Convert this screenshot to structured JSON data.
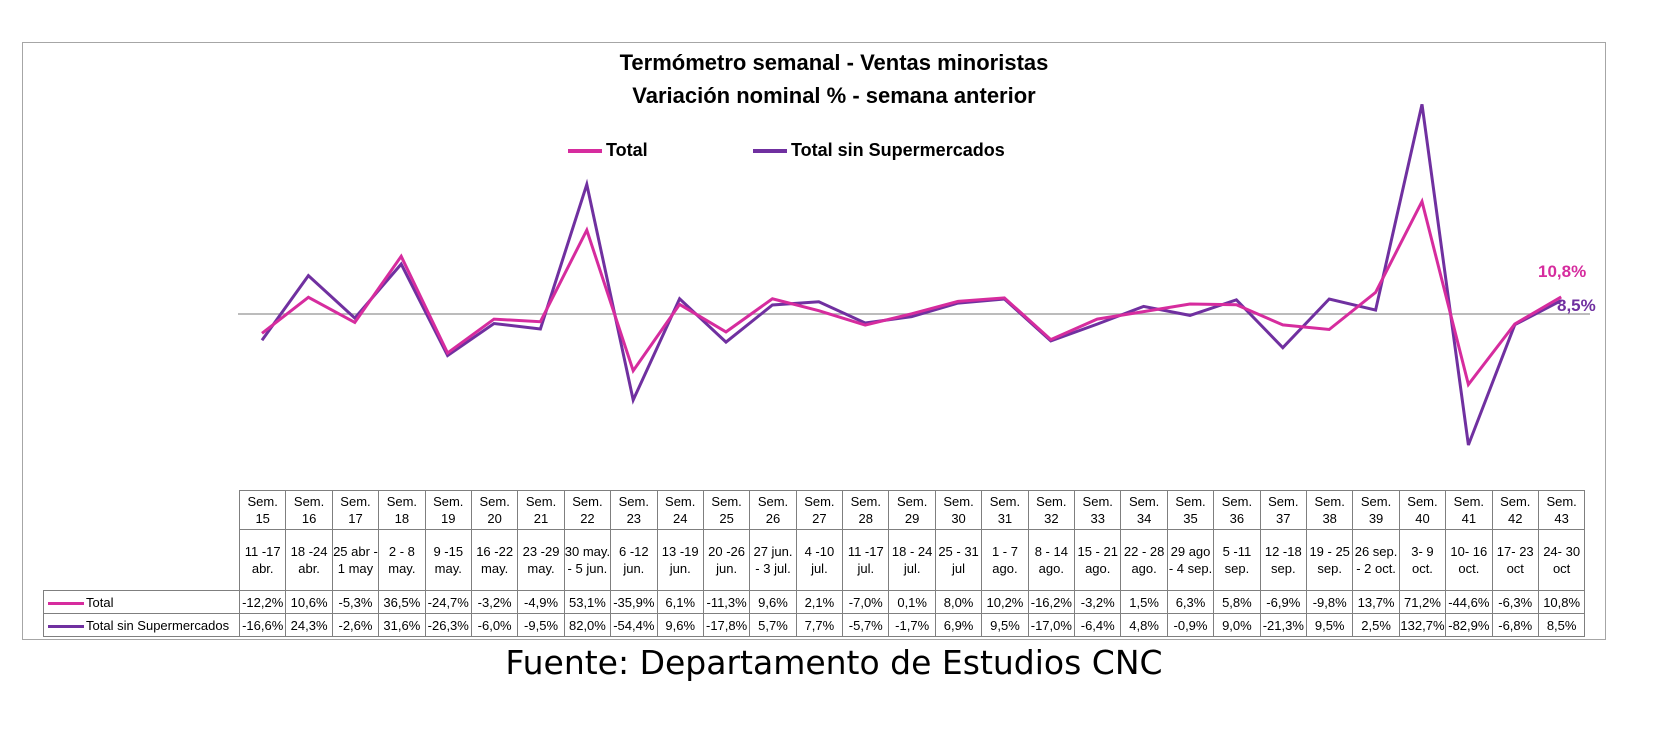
{
  "chart_data": {
    "type": "line",
    "title": "Termómetro semanal - Ventas minoristas",
    "subtitle": "Variación nominal % - semana anterior",
    "weeks": [
      "Sem. 15",
      "Sem. 16",
      "Sem. 17",
      "Sem. 18",
      "Sem. 19",
      "Sem. 20",
      "Sem. 21",
      "Sem. 22",
      "Sem. 23",
      "Sem. 24",
      "Sem. 25",
      "Sem. 26",
      "Sem. 27",
      "Sem. 28",
      "Sem. 29",
      "Sem. 30",
      "Sem. 31",
      "Sem. 32",
      "Sem. 33",
      "Sem. 34",
      "Sem. 35",
      "Sem. 36",
      "Sem. 37",
      "Sem. 38",
      "Sem. 39",
      "Sem. 40",
      "Sem. 41",
      "Sem. 42",
      "Sem. 43"
    ],
    "dates": [
      "11 -17 abr.",
      "18 -24 abr.",
      "25 abr - 1 may",
      "2 - 8 may.",
      "9 -15 may.",
      "16 -22 may.",
      "23 -29 may.",
      "30 may. - 5 jun.",
      "6 -12 jun.",
      "13 -19 jun.",
      "20 -26 jun.",
      "27 jun. - 3 jul.",
      "4 -10 jul.",
      "11 -17 jul.",
      "18 - 24 jul.",
      "25 - 31 jul",
      "1 - 7 ago.",
      "8 - 14 ago.",
      "15 - 21 ago.",
      "22 - 28 ago.",
      "29 ago - 4 sep.",
      "5 -11 sep.",
      "12 -18 sep.",
      "19 - 25 sep.",
      "26 sep. - 2 oct.",
      "3- 9 oct.",
      "10- 16 oct.",
      "17- 23 oct",
      "24- 30 oct"
    ],
    "series": [
      {
        "name": "Total",
        "color": "#d62c9e",
        "values": [
          -12.2,
          10.6,
          -5.3,
          36.5,
          -24.7,
          -3.2,
          -4.9,
          53.1,
          -35.9,
          6.1,
          -11.3,
          9.6,
          2.1,
          -7.0,
          0.1,
          8.0,
          10.2,
          -16.2,
          -3.2,
          1.5,
          6.3,
          5.8,
          -6.9,
          -9.8,
          13.7,
          71.2,
          -44.6,
          -6.3,
          10.8
        ],
        "labels": [
          "-12,2%",
          "10,6%",
          "-5,3%",
          "36,5%",
          "-24,7%",
          "-3,2%",
          "-4,9%",
          "53,1%",
          "-35,9%",
          "6,1%",
          "-11,3%",
          "9,6%",
          "2,1%",
          "-7,0%",
          "0,1%",
          "8,0%",
          "10,2%",
          "-16,2%",
          "-3,2%",
          "1,5%",
          "6,3%",
          "5,8%",
          "-6,9%",
          "-9,8%",
          "13,7%",
          "71,2%",
          "-44,6%",
          "-6,3%",
          "10,8%"
        ],
        "end_label": "10,8%"
      },
      {
        "name": "Total sin Supermercados",
        "color": "#7030a0",
        "values": [
          -16.6,
          24.3,
          -2.6,
          31.6,
          -26.3,
          -6.0,
          -9.5,
          82.0,
          -54.4,
          9.6,
          -17.8,
          5.7,
          7.7,
          -5.7,
          -1.7,
          6.9,
          9.5,
          -17.0,
          -6.4,
          4.8,
          -0.9,
          9.0,
          -21.3,
          9.5,
          2.5,
          132.7,
          -82.9,
          -6.8,
          8.5
        ],
        "labels": [
          "-16,6%",
          "24,3%",
          "-2,6%",
          "31,6%",
          "-26,3%",
          "-6,0%",
          "-9,5%",
          "82,0%",
          "-54,4%",
          "9,6%",
          "-17,8%",
          "5,7%",
          "7,7%",
          "-5,7%",
          "-1,7%",
          "6,9%",
          "9,5%",
          "-17,0%",
          "-6,4%",
          "4,8%",
          "-0,9%",
          "9,0%",
          "-21,3%",
          "9,5%",
          "2,5%",
          "132,7%",
          "-82,9%",
          "-6,8%",
          "8,5%"
        ],
        "end_label": "8,5%"
      }
    ],
    "legend_position": "top-center",
    "grid": false
  },
  "source": "Fuente: Departamento de Estudios CNC"
}
